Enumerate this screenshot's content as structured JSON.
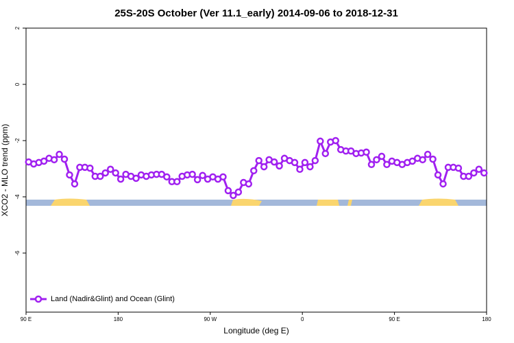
{
  "chart_data": {
    "type": "line",
    "title": "25S-20S October (Ver 11.1_early)   2014-09-06 to 2018-12-31",
    "x_label": "Longitude (deg E)",
    "y_label": "XCO2 - MLO trend (ppm)",
    "x": [
      92.5,
      97.5,
      102.5,
      107.5,
      112.5,
      117.5,
      122.5,
      127.5,
      132.5,
      137.5,
      142.5,
      147.5,
      152.5,
      157.5,
      162.5,
      167.5,
      172.5,
      177.5,
      182.5,
      187.5,
      192.5,
      197.5,
      202.5,
      207.5,
      212.5,
      217.5,
      222.5,
      227.5,
      232.5,
      237.5,
      242.5,
      247.5,
      252.5,
      257.5,
      262.5,
      267.5,
      272.5,
      277.5,
      282.5,
      287.5,
      292.5,
      297.5,
      302.5,
      307.5,
      312.5,
      317.5,
      322.5,
      327.5,
      332.5,
      337.5,
      342.5,
      347.5,
      352.5,
      357.5,
      362.5,
      367.5,
      372.5,
      377.5,
      382.5,
      387.5,
      392.5,
      397.5,
      402.5,
      407.5,
      412.5,
      417.5,
      422.5,
      427.5,
      432.5,
      437.5,
      442.5,
      447.5,
      452.5,
      457.5,
      462.5,
      467.5,
      472.5,
      477.5,
      482.5,
      487.5,
      492.5,
      497.5,
      502.5,
      507.5,
      512.5,
      517.5,
      522.5,
      527.5,
      532.5,
      537.5
    ],
    "series": [
      {
        "name": "Land (Nadir&Glint) and Ocean (Glint)",
        "color": "#a020f0",
        "values": [
          -2.76,
          -2.83,
          -2.78,
          -2.73,
          -2.63,
          -2.68,
          -2.49,
          -2.66,
          -3.22,
          -3.54,
          -2.95,
          -2.95,
          -2.98,
          -3.27,
          -3.27,
          -3.15,
          -3.02,
          -3.15,
          -3.37,
          -3.2,
          -3.27,
          -3.34,
          -3.22,
          -3.27,
          -3.22,
          -3.2,
          -3.2,
          -3.29,
          -3.46,
          -3.46,
          -3.27,
          -3.22,
          -3.2,
          -3.39,
          -3.24,
          -3.37,
          -3.29,
          -3.37,
          -3.29,
          -3.78,
          -3.95,
          -3.83,
          -3.49,
          -3.54,
          -3.07,
          -2.71,
          -2.93,
          -2.68,
          -2.76,
          -2.9,
          -2.63,
          -2.71,
          -2.78,
          -3.02,
          -2.78,
          -2.93,
          -2.71,
          -2.02,
          -2.46,
          -2.05,
          -2.0,
          -2.32,
          -2.37,
          -2.37,
          -2.46,
          -2.44,
          -2.41,
          -2.85,
          -2.68,
          -2.56,
          -2.85,
          -2.73,
          -2.78,
          -2.85,
          -2.78,
          -2.73,
          -2.63,
          -2.68,
          -2.49,
          -2.66,
          -3.22,
          -3.54,
          -2.95,
          -2.95,
          -2.98,
          -3.27,
          -3.27,
          -3.15,
          -3.02,
          -3.15
        ]
      }
    ],
    "xlim": [
      90,
      540
    ],
    "xticks": [
      {
        "value": 90,
        "label": "90 E"
      },
      180,
      {
        "value": 270,
        "label": "90 W"
      },
      {
        "value": 360,
        "label": "0"
      },
      {
        "value": 450,
        "label": "90 E"
      },
      {
        "value": 540,
        "label": "180"
      }
    ],
    "ylim": [
      -8.1,
      2
    ],
    "yticks": [
      2,
      0,
      -2,
      -4,
      -6
    ],
    "legend": "bottom-left",
    "grid": false
  }
}
